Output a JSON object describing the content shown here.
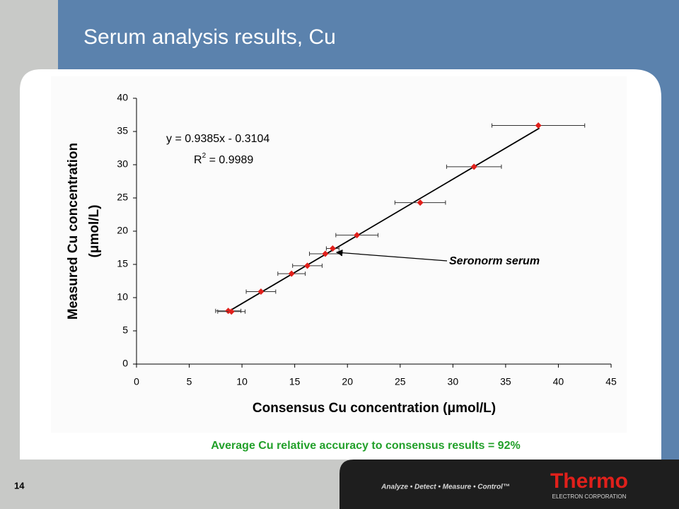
{
  "slide": {
    "title": "Serum analysis results, Cu",
    "number": "14",
    "footnote": "Average Cu relative accuracy to consensus results = 92%",
    "tagline": "Analyze • Detect • Measure • Control™",
    "logo": "Thermo",
    "logo_sub": "ELECTRON CORPORATION"
  },
  "chart_data": {
    "type": "scatter",
    "xlabel": "Consensus Cu concentration (μmol/L)",
    "ylabel": [
      "Measured Cu concentration",
      "(μmol/L)"
    ],
    "xlim": [
      0,
      45
    ],
    "ylim": [
      0,
      40
    ],
    "xticks": [
      0,
      5,
      10,
      15,
      20,
      25,
      30,
      35,
      40,
      45
    ],
    "yticks": [
      0,
      5,
      10,
      15,
      20,
      25,
      30,
      35,
      40
    ],
    "grid": false,
    "series": [
      {
        "color": "#e0201b",
        "x": [
          8.7,
          9.0,
          11.8,
          14.7,
          16.2,
          17.9,
          18.6,
          20.9,
          26.9,
          32.0,
          38.1
        ],
        "values": [
          8.0,
          7.9,
          10.9,
          13.6,
          14.8,
          16.6,
          17.4,
          19.4,
          24.3,
          29.7,
          35.9
        ],
        "xerr": [
          1.2,
          1.3,
          1.4,
          1.3,
          1.4,
          1.5,
          0.6,
          2.0,
          2.4,
          2.6,
          4.4
        ]
      }
    ],
    "trendline": {
      "color": "#000000",
      "x": [
        8.6,
        38.2
      ],
      "values": [
        7.8,
        35.5
      ]
    },
    "equation": "y = 0.9385x - 0.3104",
    "r_squared": {
      "base": "R",
      "sup": "2",
      "rest": " = 0.9989"
    },
    "annotation": "Seronorm serum"
  }
}
